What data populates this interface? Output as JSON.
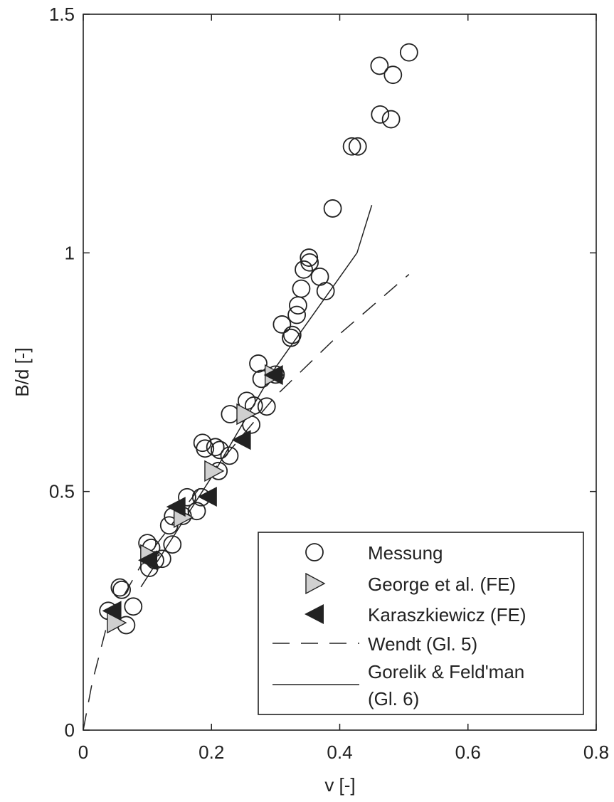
{
  "chart_data": {
    "type": "scatter",
    "title": "",
    "xlabel": "v [-]",
    "ylabel": "B/d [-]",
    "xlim": [
      0,
      0.8
    ],
    "ylim": [
      0,
      1.5
    ],
    "xticks": [
      0,
      0.2,
      0.4,
      0.6,
      0.8
    ],
    "xtick_labels": [
      "0",
      "0.2",
      "0.4",
      "0.6",
      "0.8"
    ],
    "yticks": [
      0,
      0.5,
      1,
      1.5
    ],
    "ytick_labels": [
      "0",
      "0.5",
      "1",
      "1.5"
    ],
    "grid": false,
    "legend_position": "bottom-right",
    "series": [
      {
        "name": "Messung",
        "marker": "circle",
        "color": "#222222",
        "points": [
          [
            0.039,
            0.25
          ],
          [
            0.057,
            0.299
          ],
          [
            0.06,
            0.294
          ],
          [
            0.067,
            0.22
          ],
          [
            0.078,
            0.259
          ],
          [
            0.1,
            0.392
          ],
          [
            0.106,
            0.382
          ],
          [
            0.103,
            0.34
          ],
          [
            0.112,
            0.356
          ],
          [
            0.123,
            0.359
          ],
          [
            0.134,
            0.429
          ],
          [
            0.139,
            0.389
          ],
          [
            0.14,
            0.448
          ],
          [
            0.155,
            0.449
          ],
          [
            0.162,
            0.488
          ],
          [
            0.177,
            0.459
          ],
          [
            0.184,
            0.488
          ],
          [
            0.186,
            0.602
          ],
          [
            0.19,
            0.59
          ],
          [
            0.206,
            0.593
          ],
          [
            0.213,
            0.587
          ],
          [
            0.211,
            0.543
          ],
          [
            0.228,
            0.575
          ],
          [
            0.229,
            0.662
          ],
          [
            0.262,
            0.64
          ],
          [
            0.255,
            0.69
          ],
          [
            0.266,
            0.68
          ],
          [
            0.273,
            0.768
          ],
          [
            0.278,
            0.736
          ],
          [
            0.286,
            0.678
          ],
          [
            0.3,
            0.745
          ],
          [
            0.31,
            0.85
          ],
          [
            0.326,
            0.828
          ],
          [
            0.324,
            0.822
          ],
          [
            0.333,
            0.87
          ],
          [
            0.335,
            0.89
          ],
          [
            0.34,
            0.925
          ],
          [
            0.344,
            0.965
          ],
          [
            0.352,
            0.99
          ],
          [
            0.353,
            0.98
          ],
          [
            0.369,
            0.95
          ],
          [
            0.378,
            0.92
          ],
          [
            0.389,
            1.093
          ],
          [
            0.419,
            1.223
          ],
          [
            0.428,
            1.223
          ],
          [
            0.462,
            1.392
          ],
          [
            0.463,
            1.29
          ],
          [
            0.483,
            1.373
          ],
          [
            0.48,
            1.28
          ],
          [
            0.508,
            1.42
          ]
        ]
      },
      {
        "name": "George et al. (FE)",
        "marker": "triangle-right",
        "color": "#d0d0d0",
        "points": [
          [
            0.051,
            0.225
          ],
          [
            0.103,
            0.367
          ],
          [
            0.155,
            0.446
          ],
          [
            0.203,
            0.543
          ],
          [
            0.253,
            0.662
          ],
          [
            0.297,
            0.744
          ]
        ]
      },
      {
        "name": "Karaszkiewicz (FE)",
        "marker": "triangle-left",
        "color": "#222222",
        "points": [
          [
            0.045,
            0.25
          ],
          [
            0.101,
            0.356
          ],
          [
            0.145,
            0.468
          ],
          [
            0.194,
            0.489
          ],
          [
            0.247,
            0.608
          ],
          [
            0.297,
            0.744
          ]
        ]
      },
      {
        "name": "Wendt (Gl. 5)",
        "marker": "dashed-line",
        "color": "#222222",
        "points": [
          [
            0,
            0
          ],
          [
            0.014,
            0.1
          ],
          [
            0.037,
            0.22
          ],
          [
            0.092,
            0.35
          ],
          [
            0.2,
            0.54
          ],
          [
            0.3,
            0.7
          ],
          [
            0.4,
            0.83
          ],
          [
            0.508,
            0.955
          ]
        ]
      },
      {
        "name": "Gorelik & Feld'man",
        "name_line2": "(Gl. 6)",
        "marker": "solid-line",
        "color": "#222222",
        "points": [
          [
            0.09,
            0.3
          ],
          [
            0.2,
            0.53
          ],
          [
            0.3,
            0.76
          ],
          [
            0.427,
            1.0
          ],
          [
            0.45,
            1.1
          ]
        ]
      }
    ]
  }
}
